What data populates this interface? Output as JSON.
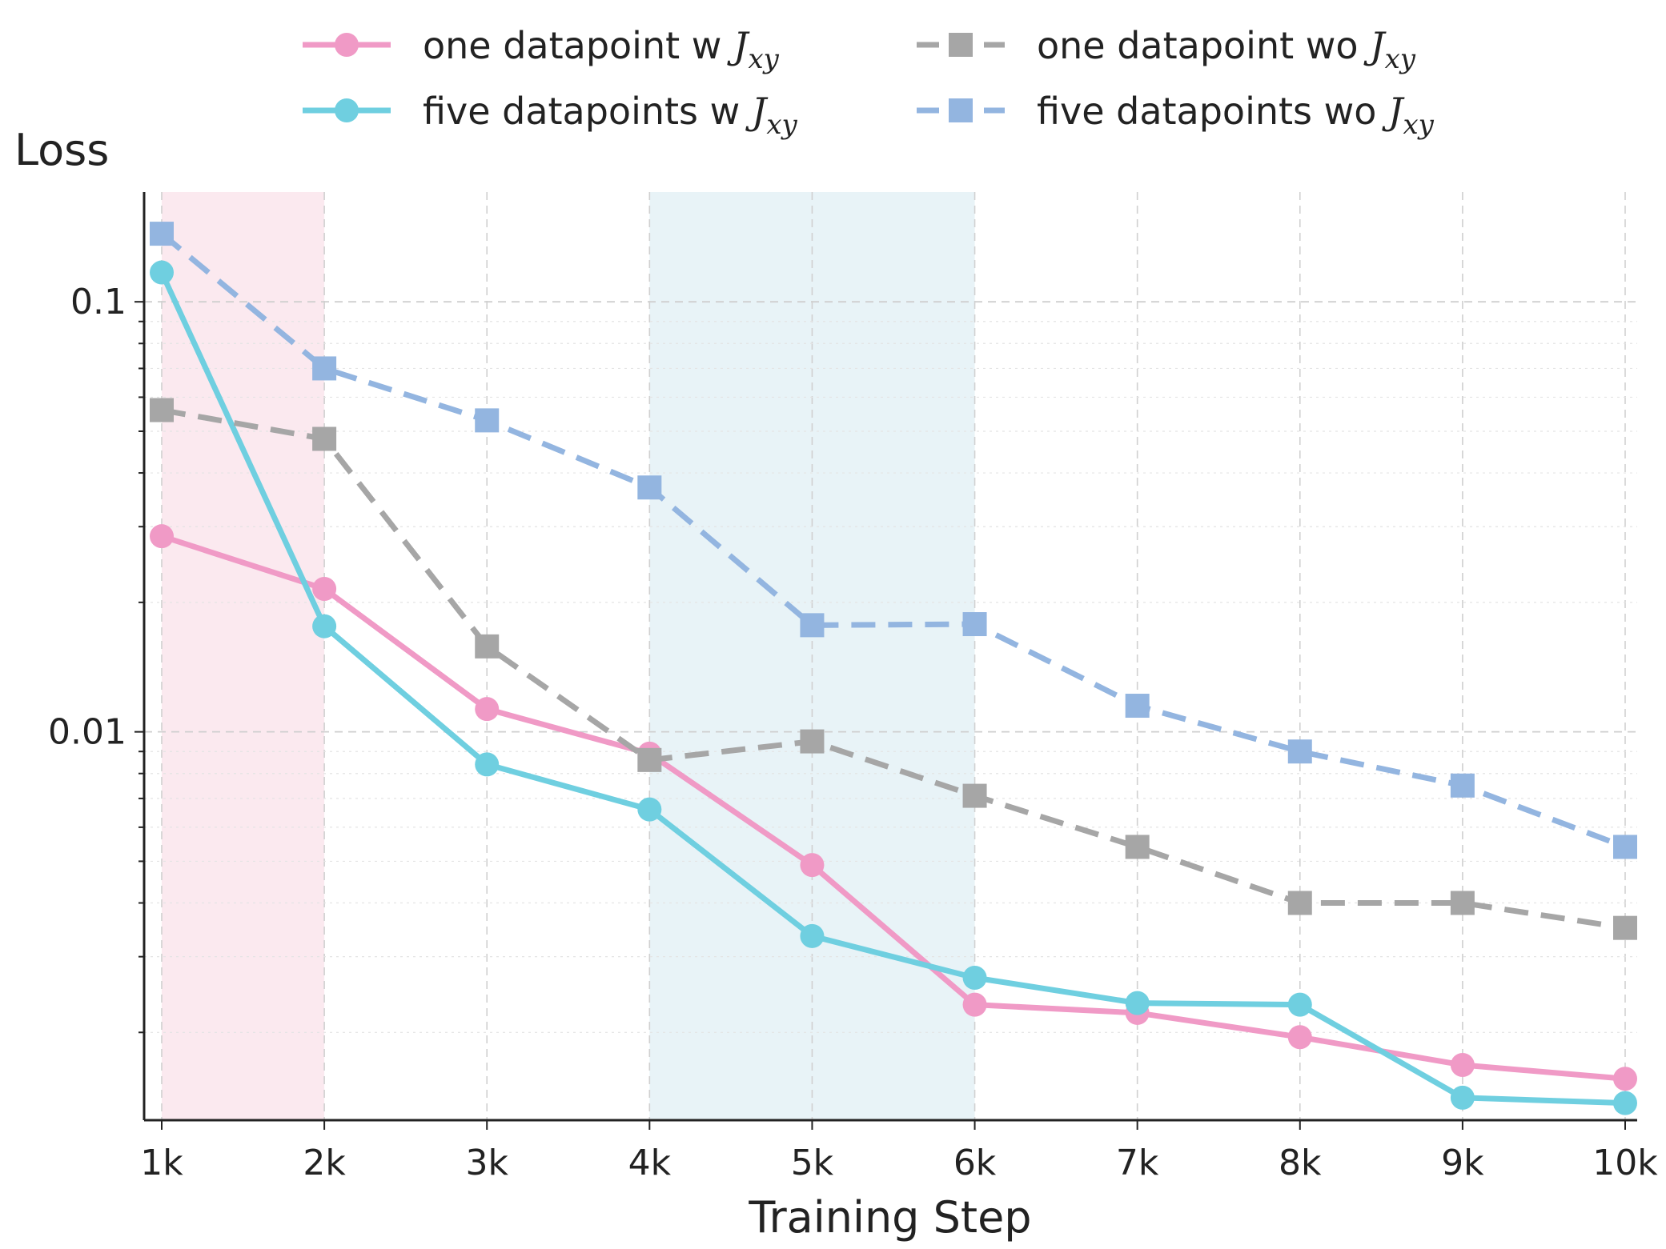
{
  "chart_data": {
    "type": "line",
    "title": "",
    "xlabel": "Training Step",
    "ylabel": "Loss",
    "yscale": "log",
    "ylim": [
      0.00125,
      0.18
    ],
    "x": [
      1,
      2,
      3,
      4,
      5,
      6,
      7,
      8,
      9,
      10
    ],
    "x_tick_labels": [
      "1k",
      "2k",
      "3k",
      "4k",
      "5k",
      "6k",
      "7k",
      "8k",
      "9k",
      "10k"
    ],
    "y_ticks": [
      {
        "value": 0.1,
        "label": "0.1"
      },
      {
        "value": 0.01,
        "label": "0.01"
      }
    ],
    "grid": true,
    "legend_position": "top",
    "shaded_regions": [
      {
        "x_start": 1,
        "x_end": 2,
        "color": "#fbe9ef"
      },
      {
        "x_start": 4,
        "x_end": 6,
        "color": "#e8f3f7"
      }
    ],
    "series": [
      {
        "name": "one datapoint w",
        "subscript_symbol": "J",
        "subscript": "xy",
        "color": "#f09ac6",
        "style": "solid",
        "marker": "circle",
        "values": [
          0.0285,
          0.0215,
          0.0113,
          0.0089,
          0.0049,
          0.00232,
          0.00222,
          0.00195,
          0.00168,
          0.00156
        ]
      },
      {
        "name": "five datapoints w",
        "subscript_symbol": "J",
        "subscript": "xy",
        "color": "#6fcfe0",
        "style": "solid",
        "marker": "circle",
        "values": [
          0.117,
          0.0176,
          0.0084,
          0.0066,
          0.00335,
          0.00268,
          0.00234,
          0.00232,
          0.00141,
          0.00137
        ]
      },
      {
        "name": "one datapoint wo",
        "subscript_symbol": "J",
        "subscript": "xy",
        "color": "#a6a6a6",
        "style": "dashed",
        "marker": "square",
        "values": [
          0.056,
          0.048,
          0.0158,
          0.0086,
          0.0095,
          0.0071,
          0.0054,
          0.004,
          0.004,
          0.0035
        ]
      },
      {
        "name": "five datapoints wo",
        "subscript_symbol": "J",
        "subscript": "xy",
        "color": "#93b5e0",
        "style": "dashed",
        "marker": "square",
        "values": [
          0.144,
          0.07,
          0.053,
          0.037,
          0.0177,
          0.0178,
          0.0115,
          0.009,
          0.0075,
          0.0054
        ]
      }
    ]
  }
}
